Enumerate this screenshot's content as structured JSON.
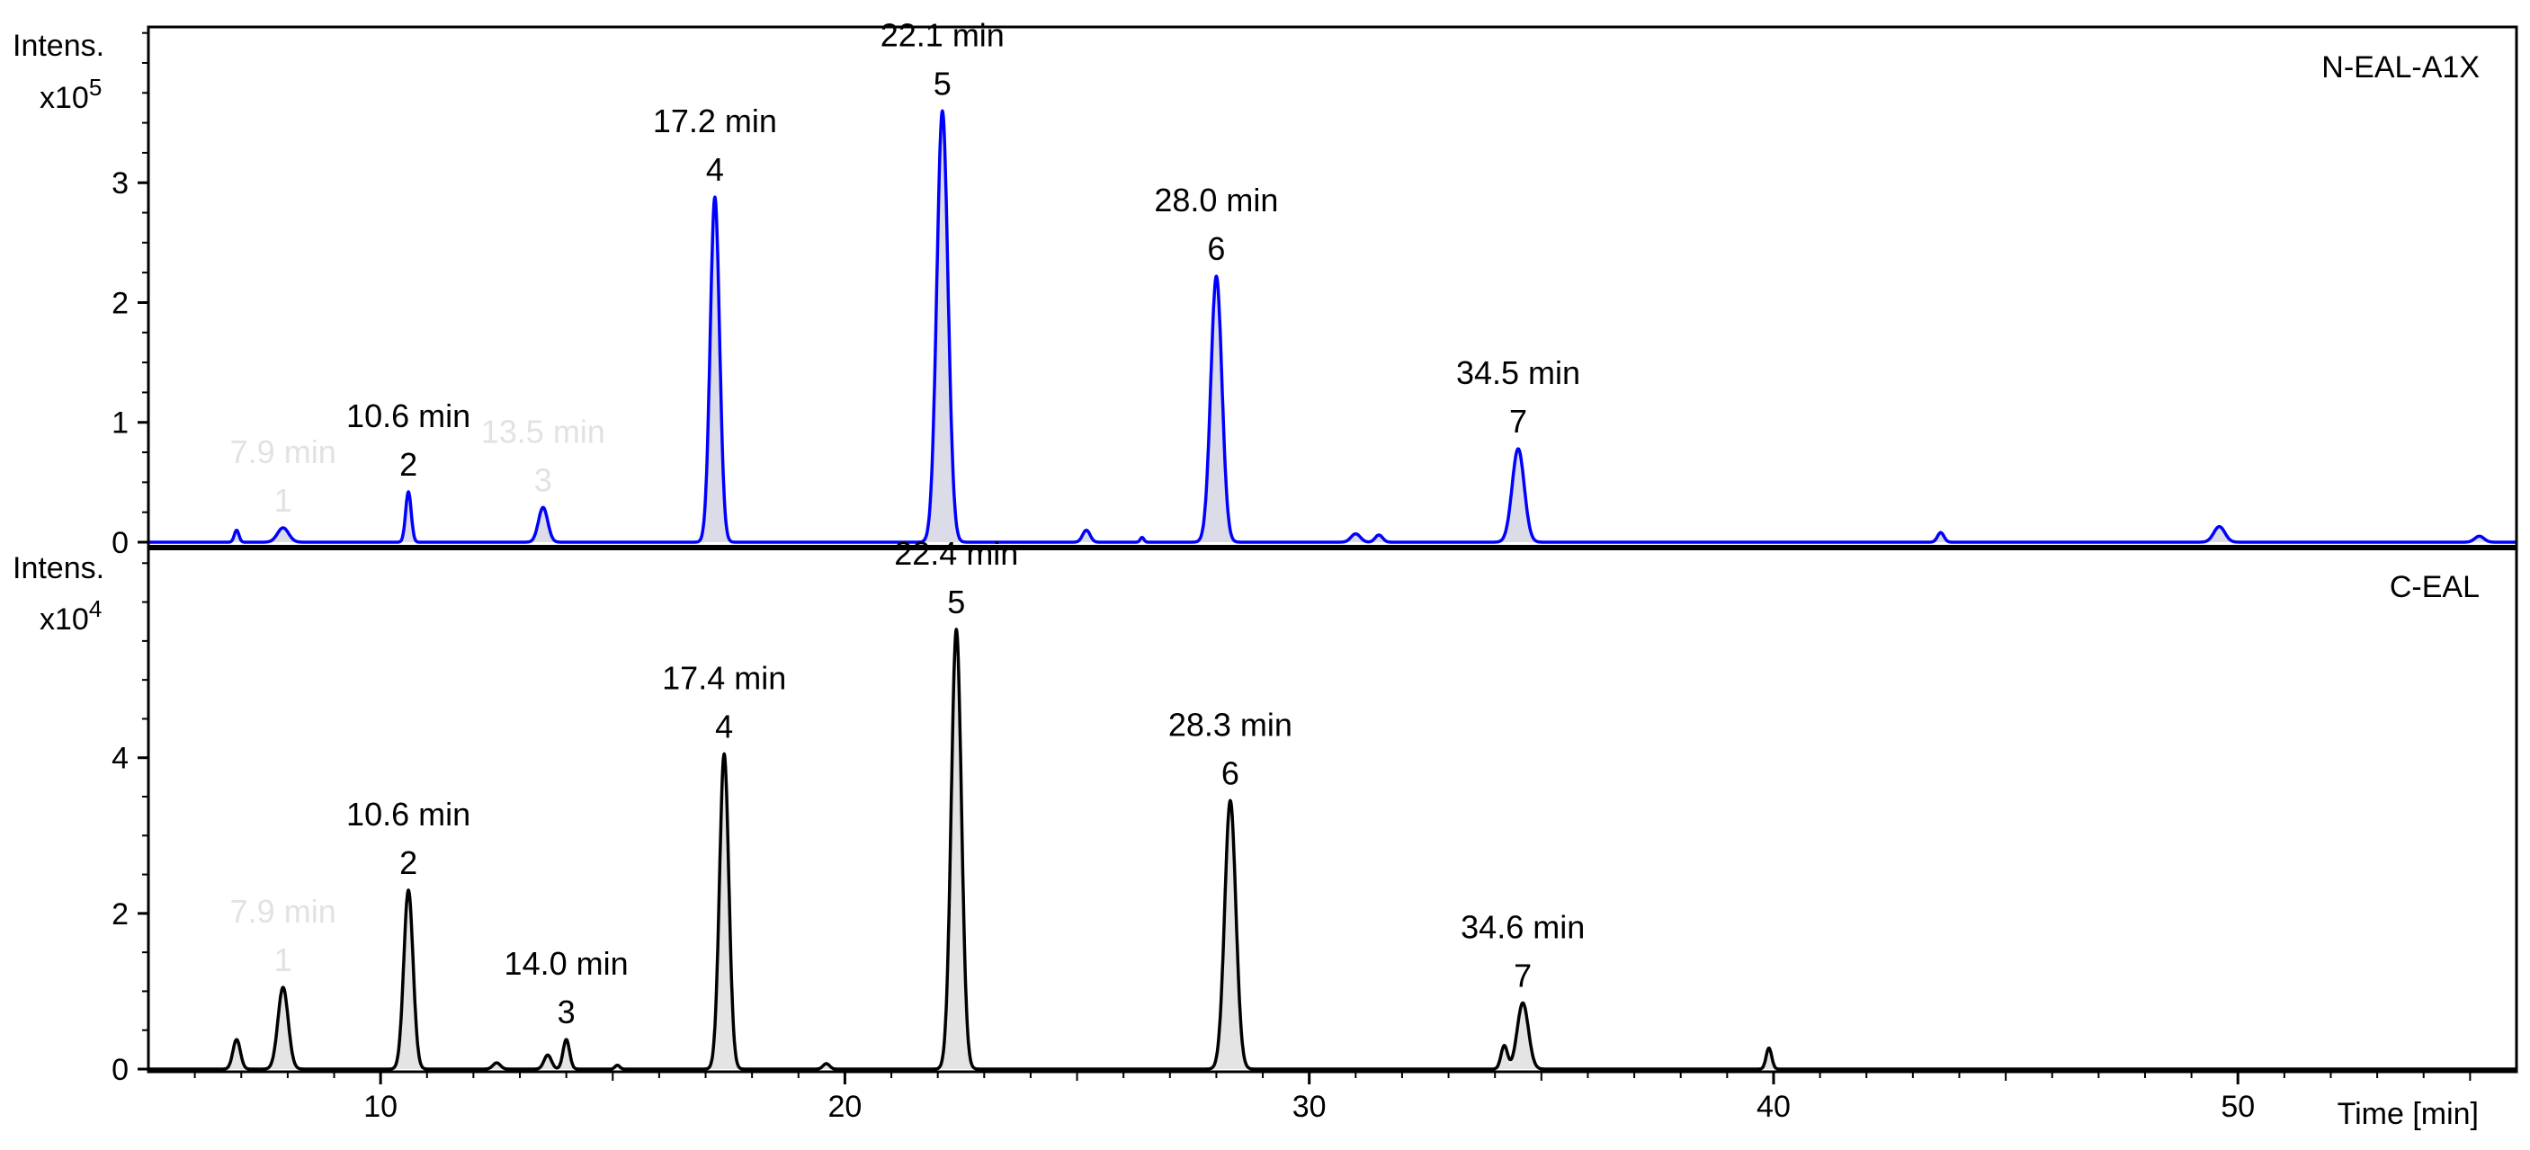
{
  "chart_data": [
    {
      "type": "line",
      "trace_name": "N-EAL-A1X",
      "y_label": "Intens.",
      "y_unit": "x10",
      "y_exponent": "5",
      "x_label": "Time [min]",
      "xlim": [
        5,
        56
      ],
      "ylim": [
        0,
        4.3
      ],
      "y_ticks": [
        0,
        1,
        2,
        3
      ],
      "color": "#0000ff",
      "fill": "#dcdce8",
      "peaks": [
        {
          "rt": 7.9,
          "height": 0.12,
          "width": 0.12
        },
        {
          "rt": 10.6,
          "height": 0.42,
          "width": 0.06
        },
        {
          "rt": 13.5,
          "height": 0.29,
          "width": 0.1
        },
        {
          "rt": 17.2,
          "height": 2.88,
          "width": 0.1
        },
        {
          "rt": 22.1,
          "height": 3.6,
          "width": 0.12
        },
        {
          "rt": 28.0,
          "height": 2.22,
          "width": 0.12
        },
        {
          "rt": 34.5,
          "height": 0.78,
          "width": 0.13
        },
        {
          "rt": 6.9,
          "height": 0.1,
          "width": 0.05
        },
        {
          "rt": 25.2,
          "height": 0.1,
          "width": 0.08
        },
        {
          "rt": 26.4,
          "height": 0.04,
          "width": 0.04
        },
        {
          "rt": 31.0,
          "height": 0.07,
          "width": 0.1
        },
        {
          "rt": 31.5,
          "height": 0.06,
          "width": 0.08
        },
        {
          "rt": 43.6,
          "height": 0.08,
          "width": 0.07
        },
        {
          "rt": 49.6,
          "height": 0.13,
          "width": 0.12
        },
        {
          "rt": 55.2,
          "height": 0.05,
          "width": 0.1
        }
      ],
      "annotations": [
        {
          "time_label": "7.9 min",
          "number": "1",
          "x": 7.9,
          "y": 0.12,
          "faded": true
        },
        {
          "time_label": "10.6 min",
          "number": "2",
          "x": 10.6,
          "y": 0.42,
          "faded": false
        },
        {
          "time_label": "13.5 min",
          "number": "3",
          "x": 13.5,
          "y": 0.29,
          "faded": true
        },
        {
          "time_label": "17.2 min",
          "number": "4",
          "x": 17.2,
          "y": 2.88,
          "faded": false
        },
        {
          "time_label": "22.1 min",
          "number": "5",
          "x": 22.1,
          "y": 3.6,
          "faded": false
        },
        {
          "time_label": "28.0 min",
          "number": "6",
          "x": 28.0,
          "y": 2.22,
          "faded": false
        },
        {
          "time_label": "34.5 min",
          "number": "7",
          "x": 34.5,
          "y": 0.78,
          "faded": false
        }
      ]
    },
    {
      "type": "line",
      "trace_name": "C-EAL",
      "y_label": "Intens.",
      "y_unit": "x10",
      "y_exponent": "4",
      "x_label": "Time [min]",
      "xlim": [
        5,
        56
      ],
      "ylim": [
        0,
        6.7
      ],
      "y_ticks": [
        0,
        2,
        4
      ],
      "x_ticks": [
        10,
        20,
        30,
        40,
        50
      ],
      "color": "#000000",
      "fill": "#e4e4e4",
      "peaks": [
        {
          "rt": 6.9,
          "height": 0.38,
          "width": 0.08
        },
        {
          "rt": 7.9,
          "height": 1.05,
          "width": 0.11
        },
        {
          "rt": 10.6,
          "height": 2.3,
          "width": 0.1
        },
        {
          "rt": 12.5,
          "height": 0.08,
          "width": 0.08
        },
        {
          "rt": 13.6,
          "height": 0.18,
          "width": 0.08
        },
        {
          "rt": 14.0,
          "height": 0.38,
          "width": 0.07
        },
        {
          "rt": 15.1,
          "height": 0.05,
          "width": 0.05
        },
        {
          "rt": 17.4,
          "height": 4.05,
          "width": 0.1
        },
        {
          "rt": 19.6,
          "height": 0.07,
          "width": 0.07
        },
        {
          "rt": 22.4,
          "height": 5.65,
          "width": 0.11
        },
        {
          "rt": 28.3,
          "height": 3.45,
          "width": 0.12
        },
        {
          "rt": 34.2,
          "height": 0.3,
          "width": 0.07
        },
        {
          "rt": 34.6,
          "height": 0.85,
          "width": 0.12
        },
        {
          "rt": 39.9,
          "height": 0.27,
          "width": 0.06
        }
      ],
      "annotations": [
        {
          "time_label": "7.9 min",
          "number": "1",
          "x": 7.9,
          "y": 1.05,
          "faded": true
        },
        {
          "time_label": "10.6 min",
          "number": "2",
          "x": 10.6,
          "y": 2.3,
          "faded": false
        },
        {
          "time_label": "14.0 min",
          "number": "3",
          "x": 14.0,
          "y": 0.38,
          "faded": false
        },
        {
          "time_label": "17.4 min",
          "number": "4",
          "x": 17.4,
          "y": 4.05,
          "faded": false
        },
        {
          "time_label": "22.4 min",
          "number": "5",
          "x": 22.4,
          "y": 5.65,
          "faded": false
        },
        {
          "time_label": "28.3 min",
          "number": "6",
          "x": 28.3,
          "y": 3.45,
          "faded": false
        },
        {
          "time_label": "34.6 min",
          "number": "7",
          "x": 34.6,
          "y": 0.85,
          "faded": false
        }
      ]
    }
  ]
}
